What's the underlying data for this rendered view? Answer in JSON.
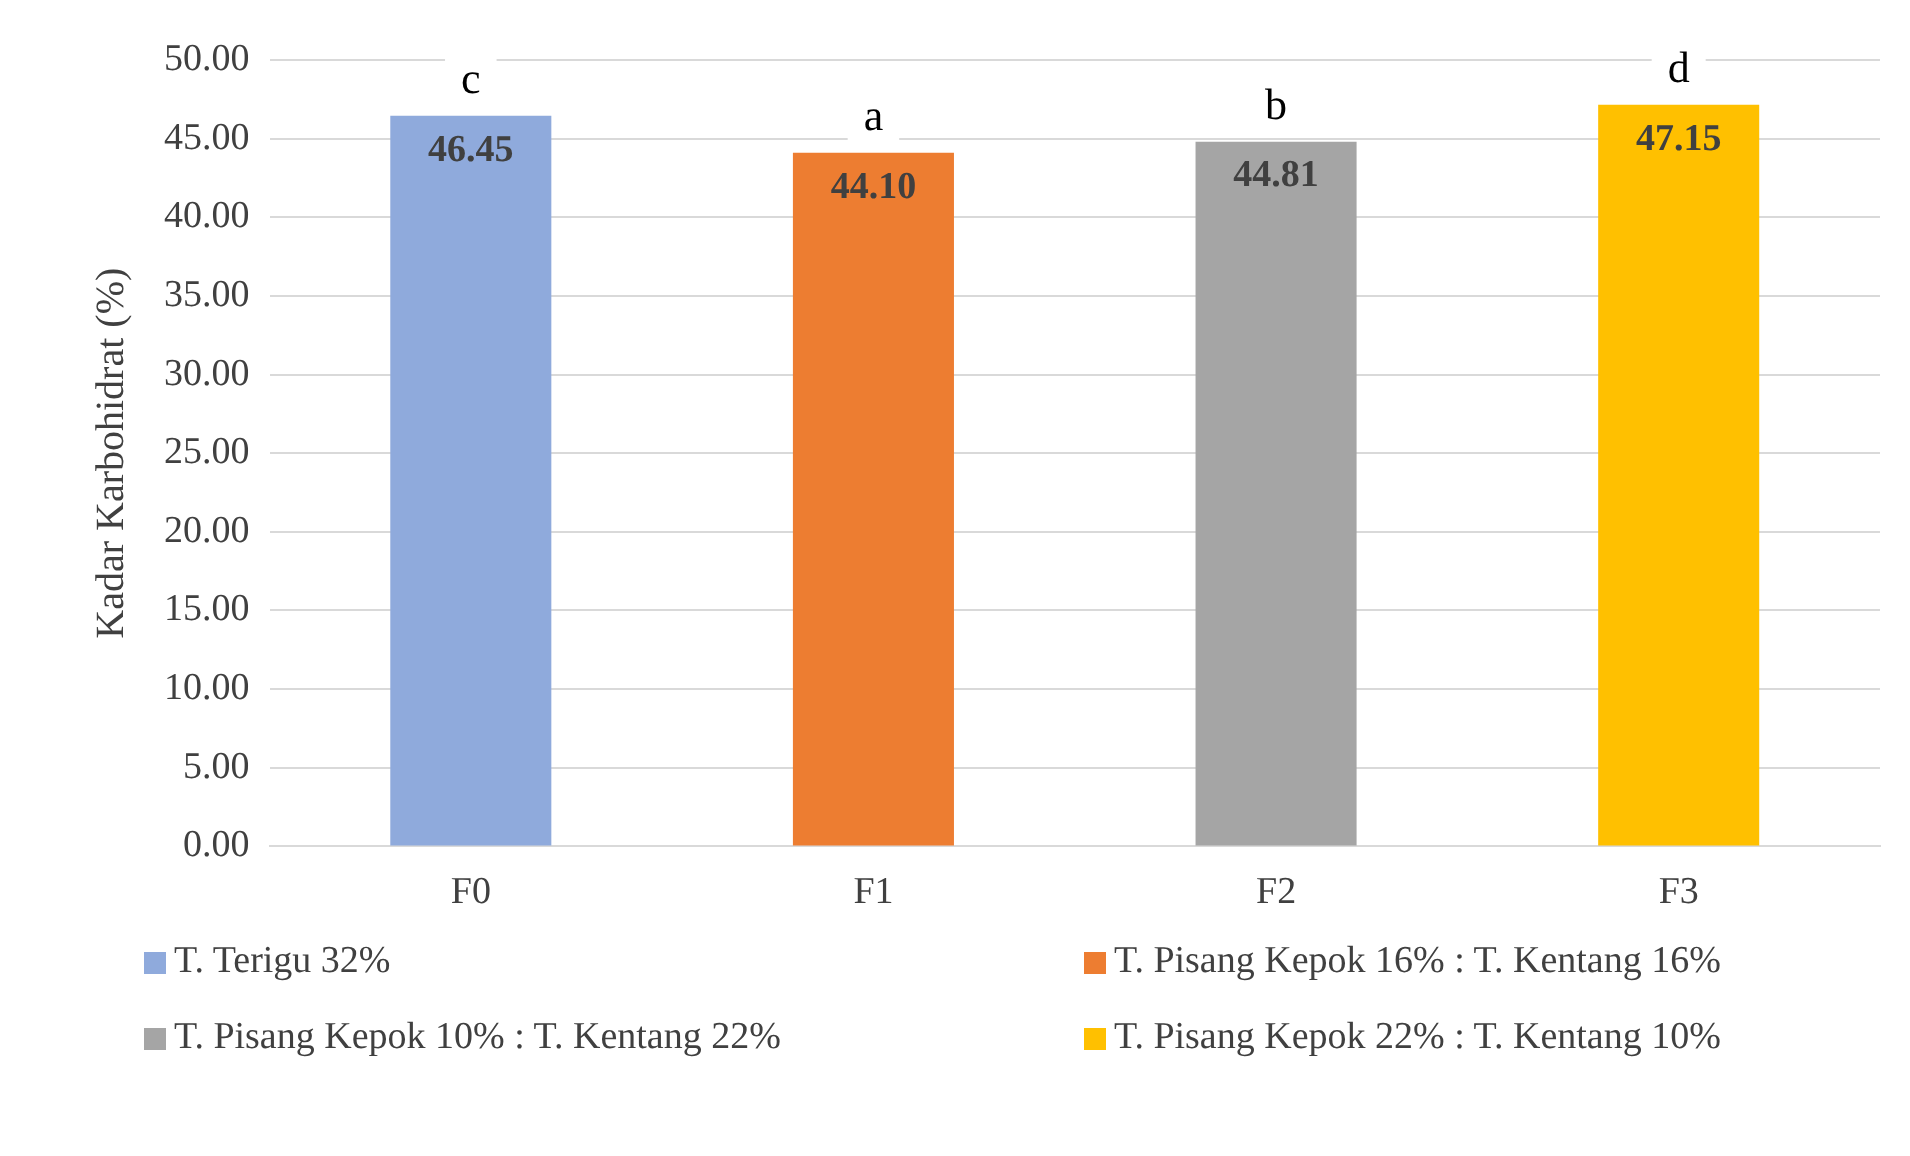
{
  "chart_data": {
    "type": "bar",
    "ylabel": "Kadar Karbohidrat (%)",
    "categories": [
      "F0",
      "F1",
      "F2",
      "F3"
    ],
    "series": [
      {
        "name": "T. Terigu 32%",
        "color": "#8faadc",
        "values": [
          46.45,
          null,
          null,
          null
        ],
        "value_labels": [
          "46.45",
          null,
          null,
          null
        ]
      },
      {
        "name": "T. Pisang Kepok 16% : T. Kentang 16%",
        "color": "#ed7d31",
        "values": [
          null,
          44.1,
          null,
          null
        ],
        "value_labels": [
          null,
          "44.10",
          null,
          null
        ]
      },
      {
        "name": "T. Pisang Kepok 10% : T. Kentang 22%",
        "color": "#a5a5a5",
        "values": [
          null,
          null,
          44.81,
          null
        ],
        "value_labels": [
          null,
          null,
          "44.81",
          null
        ]
      },
      {
        "name": "T. Pisang Kepok 22% : T. Kentang 10%",
        "color": "#ffc000",
        "values": [
          null,
          null,
          null,
          47.15
        ],
        "value_labels": [
          null,
          null,
          null,
          "47.15"
        ]
      }
    ],
    "annotations": [
      {
        "text": "c",
        "x": "F0",
        "y": 46.45
      },
      {
        "text": "a",
        "x": "F1",
        "y": 44.1
      },
      {
        "text": "b",
        "x": "F2",
        "y": 44.81
      },
      {
        "text": "d",
        "x": "F3",
        "y": 47.15
      }
    ],
    "ylim": [
      0,
      50
    ],
    "yticks": [
      {
        "value": 0,
        "label": "0.00"
      },
      {
        "value": 5,
        "label": "5.00"
      },
      {
        "value": 10,
        "label": "10.00"
      },
      {
        "value": 15,
        "label": "15.00"
      },
      {
        "value": 20,
        "label": "20.00"
      },
      {
        "value": 25,
        "label": "25.00"
      },
      {
        "value": 30,
        "label": "30.00"
      },
      {
        "value": 35,
        "label": "35.00"
      },
      {
        "value": 40,
        "label": "40.00"
      },
      {
        "value": 45,
        "label": "45.00"
      },
      {
        "value": 50,
        "label": "50.00"
      }
    ],
    "grid": "y",
    "legend": "bottom"
  }
}
